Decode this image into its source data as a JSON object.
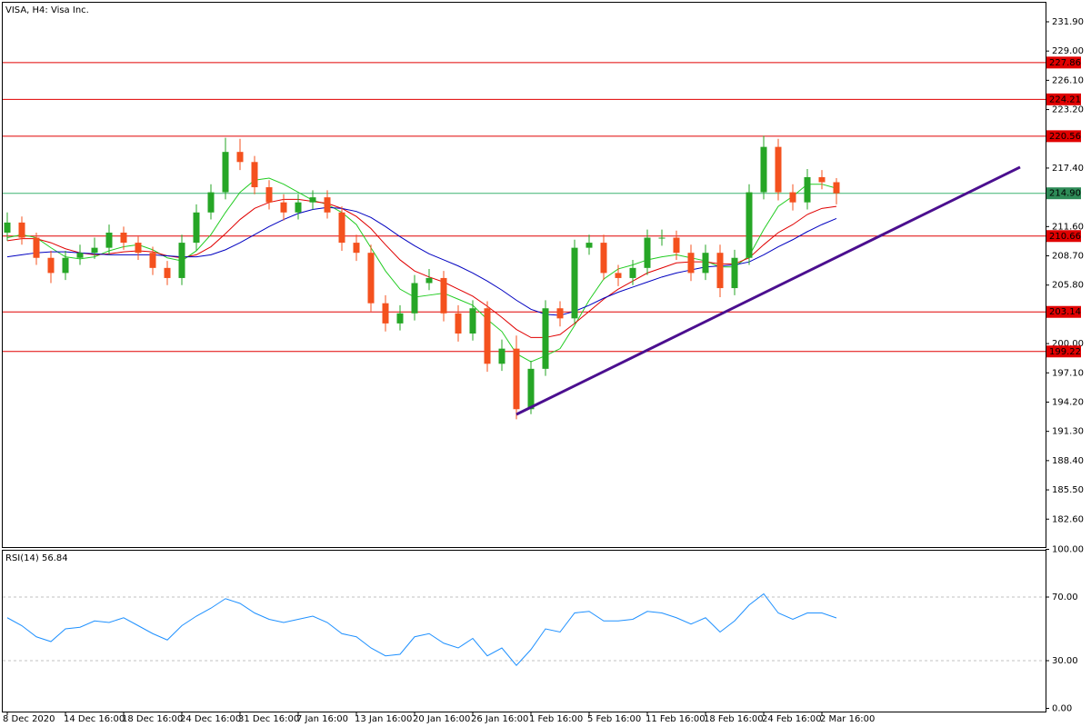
{
  "chart_data": [
    {
      "type": "candlestick",
      "title": "VISA, H4: Visa Inc.",
      "categories": [
        "8 Dec 2020",
        null,
        null,
        null,
        "14 Dec 16:00",
        null,
        null,
        null,
        "18 Dec 16:00",
        null,
        null,
        null,
        "24 Dec 16:00",
        null,
        null,
        null,
        "31 Dec 16:00",
        null,
        null,
        null,
        "7 Jan 16:00",
        null,
        null,
        null,
        "13 Jan 16:00",
        null,
        null,
        null,
        "20 Jan 16:00",
        null,
        null,
        null,
        "26 Jan 16:00",
        null,
        null,
        null,
        "1 Feb 16:00",
        null,
        null,
        null,
        "5 Feb 16:00",
        null,
        null,
        null,
        "11 Feb 16:00",
        null,
        null,
        null,
        "18 Feb 16:00",
        null,
        null,
        null,
        "24 Feb 16:00",
        null,
        null,
        null,
        "2 Mar 16:00",
        null
      ],
      "open": [
        211,
        212,
        210.5,
        208.5,
        207,
        208.5,
        209,
        209.5,
        211,
        210,
        209,
        207.5,
        206.5,
        210,
        213,
        215,
        219,
        218,
        215.5,
        214,
        213,
        214,
        214.5,
        213,
        210,
        209,
        204,
        202,
        203,
        206,
        206.5,
        203,
        201,
        203.5,
        198,
        199.5,
        193.5,
        197.5,
        203.5,
        202.5,
        209.5,
        210,
        207,
        206.5,
        207.5,
        210.5,
        210.5,
        209,
        207,
        209,
        205.5,
        208.5,
        215,
        219.5,
        215,
        214,
        216.5,
        216
      ],
      "high": [
        213,
        212.6,
        211,
        209.2,
        209.2,
        209.8,
        210.5,
        211.8,
        211.6,
        210.6,
        209.6,
        208.2,
        210.8,
        213.8,
        215.8,
        220.4,
        220.3,
        218.6,
        216.2,
        214.8,
        214.8,
        215.2,
        215.2,
        213.6,
        210.8,
        209.8,
        204.8,
        203.8,
        206.8,
        207.4,
        207.2,
        203.8,
        204.3,
        204.2,
        200.4,
        200.8,
        198.3,
        204.3,
        204.2,
        210.3,
        210.8,
        210.8,
        207.8,
        208.3,
        211.3,
        211.3,
        211.2,
        209.8,
        209.8,
        209.8,
        209.3,
        215.8,
        220.6,
        220.3,
        215.8,
        217.3,
        217.2,
        216.4
      ],
      "low": [
        210.2,
        209.8,
        207.8,
        206,
        206.3,
        207.8,
        208.4,
        208.8,
        209.3,
        208.3,
        206.8,
        205.8,
        205.8,
        209.2,
        212.3,
        214.3,
        217.2,
        214.8,
        213.3,
        212.2,
        212.3,
        213.3,
        212.4,
        209.2,
        208.2,
        203.2,
        201.2,
        201.3,
        202.3,
        205.3,
        202.2,
        200.2,
        200.3,
        197.2,
        197.3,
        192.5,
        193,
        196.8,
        201.7,
        202,
        208.8,
        206.3,
        205.7,
        205.8,
        206.8,
        209.7,
        208.3,
        206.2,
        206.3,
        204.6,
        204.8,
        207.8,
        214.3,
        214.2,
        213.2,
        213.3,
        215.3,
        213.8
      ],
      "close": [
        212,
        210.5,
        208.5,
        207,
        208.5,
        209,
        209.5,
        211,
        210,
        209,
        207.5,
        206.5,
        210,
        213,
        215,
        219,
        218,
        215.5,
        214,
        213,
        214,
        214.5,
        213,
        210,
        209,
        204,
        202,
        203,
        206,
        206.5,
        203,
        201,
        203.5,
        198,
        199.5,
        193.5,
        197.5,
        203.5,
        202.5,
        209.5,
        210,
        207,
        206.5,
        207.5,
        210.5,
        210.5,
        209,
        207,
        209,
        205.5,
        208.5,
        215,
        219.5,
        215,
        214,
        216.5,
        216,
        214.9
      ],
      "up_color": "#26a626",
      "down_color": "#f4511e",
      "overlays": [
        {
          "color": "#22cc22",
          "values": [
            210.5,
            210.8,
            210.5,
            209.5,
            208.6,
            208.4,
            208.6,
            209.2,
            209.6,
            209.8,
            209.3,
            208.5,
            208.2,
            209.2,
            210.8,
            213,
            215,
            216.2,
            216.4,
            215.8,
            215,
            214.2,
            213.8,
            213,
            211.8,
            209.5,
            207.2,
            205.4,
            204.6,
            204.8,
            205,
            204.4,
            203.8,
            202.4,
            201.2,
            199,
            198.2,
            198.8,
            199.5,
            201.8,
            204.3,
            206.4,
            207.4,
            207.8,
            208.3,
            208.6,
            208.8,
            208.5,
            208.2,
            207.6,
            207.6,
            208.7,
            211.3,
            213.6,
            214.6,
            215.8,
            215.8,
            215.4
          ]
        },
        {
          "color": "#e00000",
          "values": [
            210.2,
            210.4,
            210.4,
            210,
            209.4,
            209,
            208.8,
            208.9,
            209.1,
            209.2,
            209.1,
            208.7,
            208.5,
            208.8,
            209.6,
            210.9,
            212.3,
            213.4,
            214,
            214.3,
            214.3,
            214.1,
            213.9,
            213.4,
            212.6,
            211.4,
            209.8,
            208.3,
            207.2,
            206.6,
            206.1,
            205.4,
            204.7,
            203.7,
            202.6,
            201.4,
            200.6,
            200.6,
            200.9,
            202,
            203.2,
            204.4,
            205.4,
            206.2,
            207,
            207.5,
            208,
            208.1,
            208.1,
            207.9,
            207.9,
            208.5,
            209.8,
            211,
            211.8,
            212.8,
            213.4,
            213.6
          ]
        },
        {
          "color": "#0000c0",
          "values": [
            208.6,
            208.8,
            209,
            209.1,
            209.1,
            209,
            208.9,
            208.8,
            208.8,
            208.8,
            208.8,
            208.7,
            208.6,
            208.6,
            208.8,
            209.3,
            210,
            210.8,
            211.6,
            212.3,
            212.9,
            213.3,
            213.5,
            213.4,
            213.1,
            212.5,
            211.6,
            210.6,
            209.7,
            208.9,
            208.3,
            207.7,
            207,
            206.2,
            205.3,
            204.3,
            203.4,
            202.9,
            202.8,
            203.2,
            203.8,
            204.5,
            205.1,
            205.6,
            206.1,
            206.6,
            207,
            207.3,
            207.6,
            207.7,
            207.8,
            208.1,
            208.8,
            209.6,
            210.3,
            211.1,
            211.8,
            212.4
          ]
        }
      ],
      "levels": [
        227.86,
        224.21,
        220.56,
        210.66,
        203.14,
        199.22
      ],
      "level_color": "#e00000",
      "last_price": {
        "value": 214.9,
        "label": "214.90"
      },
      "last_price_color": "#3cb371",
      "trendline": [
        192.98,
        217.49
      ],
      "trendline_color": "#4b0f8f",
      "ylim": [
        179.83,
        233.79
      ],
      "yticks": [
        {
          "value": 182.6,
          "label": "182.60"
        },
        {
          "value": 185.5,
          "label": "185.50"
        },
        {
          "value": 188.4,
          "label": "188.40"
        },
        {
          "value": 191.3,
          "label": "191.30"
        },
        {
          "value": 194.2,
          "label": "194.20"
        },
        {
          "value": 197.1,
          "label": "197.10"
        },
        {
          "value": 200,
          "label": "200.00"
        },
        {
          "value": 205.8,
          "label": "205.80"
        },
        {
          "value": 208.7,
          "label": "208.70"
        },
        {
          "value": 211.6,
          "label": "211.60"
        },
        {
          "value": 217.4,
          "label": "217.40"
        },
        {
          "value": 223.2,
          "label": "223.20"
        },
        {
          "value": 226.1,
          "label": "226.10"
        },
        {
          "value": 229,
          "label": "229.00"
        },
        {
          "value": 231.9,
          "label": "231.90"
        }
      ]
    },
    {
      "type": "line",
      "title": "RSI(14) 56.84",
      "color": "#1e90ff",
      "values": [
        57,
        52,
        45,
        42,
        50,
        51,
        55,
        54,
        57,
        52,
        47,
        43,
        52,
        58,
        63,
        69,
        66,
        60,
        56,
        54,
        56,
        58,
        54,
        47,
        45,
        38,
        33,
        34,
        45,
        47,
        41,
        38,
        44,
        33,
        38,
        27,
        37,
        50,
        48,
        60,
        61,
        55,
        55,
        56,
        61,
        60,
        57,
        53,
        57,
        48,
        55,
        65,
        72,
        60,
        56,
        60,
        60,
        56.84
      ],
      "ylim": [
        0,
        100
      ],
      "yticks": [
        {
          "value": 0,
          "label": "0.00"
        },
        {
          "value": 30,
          "label": "30.00"
        },
        {
          "value": 70,
          "label": "70.00"
        },
        {
          "value": 100,
          "label": "100.00"
        }
      ]
    }
  ]
}
